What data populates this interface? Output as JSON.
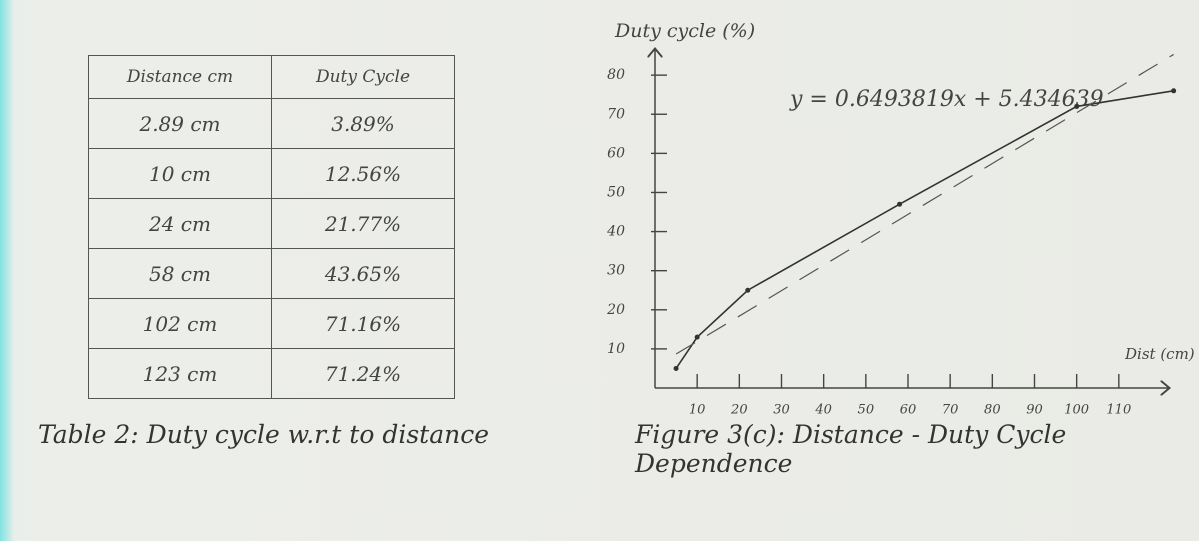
{
  "table": {
    "header": [
      "Distance cm",
      "Duty Cycle"
    ],
    "rows": [
      [
        "2.89 cm",
        "3.89%"
      ],
      [
        "10 cm",
        "12.56%"
      ],
      [
        "24 cm",
        "21.77%"
      ],
      [
        "58 cm",
        "43.65%"
      ],
      [
        "102 cm",
        "71.16%"
      ],
      [
        "123 cm",
        "71.24%"
      ]
    ],
    "caption": "Table 2: Duty cycle w.r.t to distance"
  },
  "chart_data": {
    "type": "line",
    "title": "Figure 3(c): Distance - Duty Cycle Dependence",
    "y_label": "Duty cycle (%)",
    "x_label": "Dist (cm)",
    "annotation": "y = 0.6493819x + 5.434639",
    "x": [
      5,
      10,
      22,
      58,
      100,
      123
    ],
    "series": [
      {
        "color": "#333333",
        "values": [
          5,
          13,
          25,
          47,
          72,
          76
        ],
        "markers": true
      },
      {
        "color": "#555555",
        "values": [
          8.7,
          11.9,
          19.7,
          43.1,
          70.4,
          85.3
        ],
        "dashed": true
      }
    ],
    "xlim": [
      0,
      120
    ],
    "ylim": [
      0,
      85
    ],
    "xticks": [
      10,
      20,
      30,
      40,
      50,
      60,
      70,
      80,
      90,
      100,
      110
    ],
    "yticks": [
      10,
      20,
      30,
      40,
      50,
      60,
      70,
      80
    ]
  }
}
